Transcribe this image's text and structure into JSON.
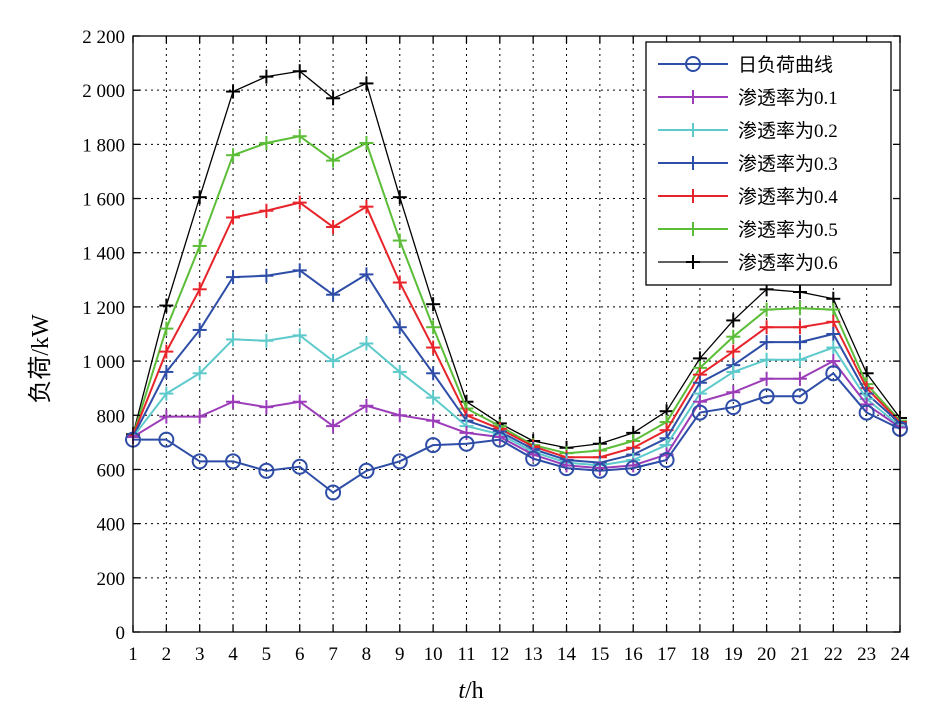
{
  "chart_data": {
    "type": "line",
    "xlabel_var": "t",
    "xlabel_unit": "/h",
    "ylabel": "负荷/kW",
    "xlim": [
      1,
      24
    ],
    "ylim": [
      0,
      2200
    ],
    "grid": true,
    "legend_position": "top-right",
    "x": [
      1,
      2,
      3,
      4,
      5,
      6,
      7,
      8,
      9,
      10,
      11,
      12,
      13,
      14,
      15,
      16,
      17,
      18,
      19,
      20,
      21,
      22,
      23,
      24
    ],
    "x_tick_labels": [
      "1",
      "2",
      "3",
      "4",
      "5",
      "6",
      "7",
      "8",
      "9",
      "10",
      "11",
      "12",
      "13",
      "14",
      "15",
      "16",
      "17",
      "18",
      "19",
      "20",
      "21",
      "22",
      "23",
      "24"
    ],
    "y_ticks": [
      0,
      200,
      400,
      600,
      800,
      1000,
      1200,
      1400,
      1600,
      1800,
      2000,
      2200
    ],
    "y_tick_labels": [
      "0",
      "200",
      "400",
      "600",
      "800",
      "1 000",
      "1 200",
      "1 400",
      "1 600",
      "1 800",
      "2 000",
      "2 200"
    ],
    "series": [
      {
        "name": "日负荷曲线",
        "color": "#2E4DA7",
        "marker": "circle",
        "line_width": 2,
        "values": [
          710,
          710,
          630,
          630,
          595,
          610,
          515,
          595,
          630,
          690,
          695,
          710,
          640,
          605,
          595,
          605,
          635,
          810,
          830,
          870,
          870,
          955,
          810,
          750
        ]
      },
      {
        "name": "渗透率为0.1",
        "color": "#9B3DB8",
        "marker": "plus",
        "line_width": 2,
        "values": [
          720,
          795,
          795,
          850,
          830,
          850,
          760,
          835,
          800,
          780,
          735,
          720,
          655,
          615,
          605,
          615,
          655,
          850,
          885,
          935,
          935,
          1000,
          840,
          755
        ]
      },
      {
        "name": "渗透率为0.2",
        "color": "#5ECACB",
        "marker": "plus",
        "line_width": 2,
        "values": [
          720,
          880,
          955,
          1080,
          1075,
          1095,
          1000,
          1065,
          960,
          865,
          760,
          730,
          665,
          625,
          615,
          635,
          690,
          880,
          960,
          1005,
          1005,
          1050,
          860,
          760
        ]
      },
      {
        "name": "渗透率为0.3",
        "color": "#2E4DA7",
        "marker": "plus",
        "line_width": 2,
        "values": [
          720,
          960,
          1115,
          1310,
          1315,
          1335,
          1245,
          1320,
          1125,
          955,
          780,
          740,
          675,
          635,
          625,
          655,
          715,
          920,
          985,
          1070,
          1070,
          1100,
          880,
          770
        ]
      },
      {
        "name": "渗透率为0.4",
        "color": "#E8242B",
        "marker": "plus",
        "line_width": 2,
        "values": [
          725,
          1035,
          1265,
          1530,
          1555,
          1585,
          1495,
          1570,
          1290,
          1050,
          800,
          750,
          685,
          645,
          645,
          680,
          745,
          950,
          1035,
          1125,
          1125,
          1145,
          900,
          775
        ]
      },
      {
        "name": "渗透率为0.5",
        "color": "#5CBD38",
        "marker": "plus",
        "line_width": 2,
        "values": [
          725,
          1120,
          1425,
          1760,
          1805,
          1830,
          1740,
          1805,
          1445,
          1125,
          825,
          760,
          690,
          660,
          670,
          705,
          775,
          975,
          1090,
          1190,
          1195,
          1190,
          915,
          780
        ]
      },
      {
        "name": "渗透率为0.6",
        "color": "#000000",
        "marker": "plus",
        "line_width": 1.3,
        "values": [
          730,
          1205,
          1605,
          1995,
          2050,
          2070,
          1970,
          2025,
          1605,
          1210,
          850,
          770,
          705,
          680,
          695,
          735,
          815,
          1010,
          1150,
          1265,
          1255,
          1230,
          955,
          790
        ]
      }
    ]
  }
}
